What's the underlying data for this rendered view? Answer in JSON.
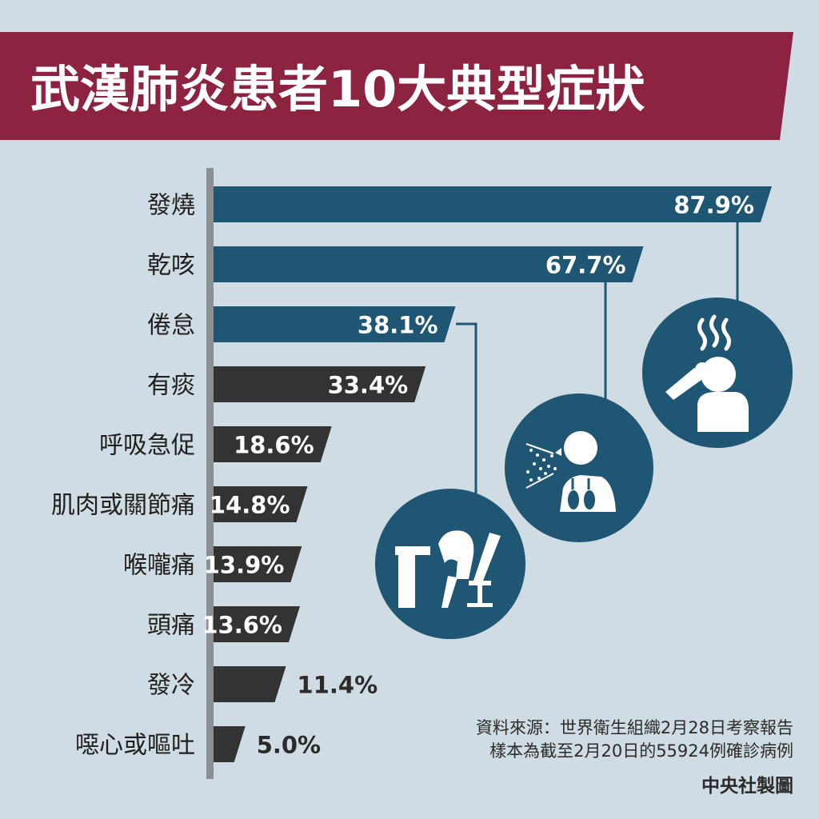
{
  "title": "武漢肺炎患者10大典型症狀",
  "chart_data": {
    "type": "bar",
    "orientation": "horizontal",
    "title": "武漢肺炎患者10大典型症狀",
    "categories": [
      "發燒",
      "乾咳",
      "倦怠",
      "有痰",
      "呼吸急促",
      "肌肉或關節痛",
      "喉嚨痛",
      "頭痛",
      "發冷",
      "噁心或嘔吐"
    ],
    "values": [
      87.9,
      67.7,
      38.1,
      33.4,
      18.6,
      14.8,
      13.9,
      13.6,
      11.4,
      5.0
    ],
    "value_labels": [
      "87.9%",
      "67.7%",
      "38.1%",
      "33.4%",
      "18.6%",
      "14.8%",
      "13.9%",
      "13.6%",
      "11.4%",
      "5.0%"
    ],
    "xlim": [
      0,
      100
    ],
    "highlighted_top": 3,
    "grid": false,
    "legend": "none"
  },
  "source_lines": [
    "資料來源：世界衛生組織2月28日考察報告",
    "樣本為截至2月20日的55924例確診病例"
  ],
  "credit": "中央社製圖",
  "icons": [
    "fever-icon",
    "dry-cough-icon",
    "fatigue-icon"
  ],
  "colors": {
    "background": "#cfdce3",
    "title_band": "#8c2340",
    "highlight_bar": "#1f5673",
    "normal_bar": "#333333",
    "axis": "#8a8f93"
  }
}
